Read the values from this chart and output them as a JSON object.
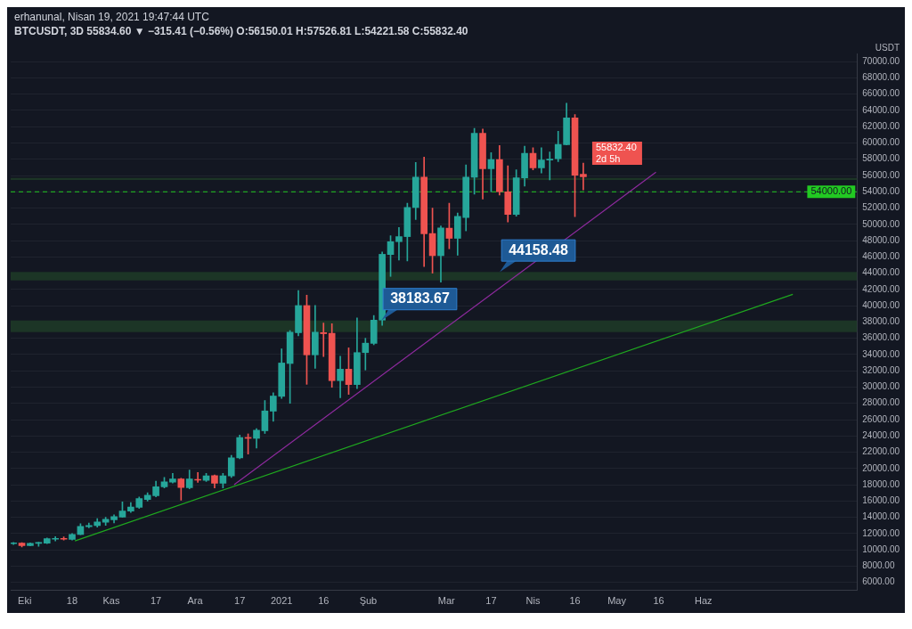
{
  "chart_data": {
    "type": "candlestick",
    "title": "erhanunal, Nisan 19, 2021 19:47:44 UTC",
    "subtitle": "BTCUSDT, 3D 55834.60 ▼ −315.41 (−0.56%) O:56150.01 H:57526.81 L:54221.58 C:55832.40",
    "ylabel": "USDT",
    "x": [
      "2020-09-27",
      "2020-09-30",
      "2020-10-03",
      "2020-10-06",
      "2020-10-09",
      "2020-10-12",
      "2020-10-15",
      "2020-10-18",
      "2020-10-21",
      "2020-10-24",
      "2020-10-27",
      "2020-10-30",
      "2020-11-02",
      "2020-11-05",
      "2020-11-08",
      "2020-11-11",
      "2020-11-14",
      "2020-11-17",
      "2020-11-20",
      "2020-11-23",
      "2020-11-26",
      "2020-11-29",
      "2020-12-02",
      "2020-12-05",
      "2020-12-08",
      "2020-12-11",
      "2020-12-14",
      "2020-12-17",
      "2020-12-20",
      "2020-12-23",
      "2020-12-26",
      "2020-12-29",
      "2021-01-01",
      "2021-01-04",
      "2021-01-07",
      "2021-01-10",
      "2021-01-13",
      "2021-01-16",
      "2021-01-19",
      "2021-01-22",
      "2021-01-25",
      "2021-01-28",
      "2021-01-31",
      "2021-02-03",
      "2021-02-06",
      "2021-02-09",
      "2021-02-12",
      "2021-02-15",
      "2021-02-18",
      "2021-02-21",
      "2021-02-24",
      "2021-02-27",
      "2021-03-02",
      "2021-03-05",
      "2021-03-08",
      "2021-03-11",
      "2021-03-14",
      "2021-03-17",
      "2021-03-20",
      "2021-03-23",
      "2021-03-26",
      "2021-03-29",
      "2021-04-01",
      "2021-04-04",
      "2021-04-07",
      "2021-04-10",
      "2021-04-13",
      "2021-04-16",
      "2021-04-19"
    ],
    "ohlc": [
      [
        10750,
        10900,
        10650,
        10800
      ],
      [
        10820,
        10890,
        10340,
        10510
      ],
      [
        10510,
        10850,
        10500,
        10790
      ],
      [
        10790,
        10950,
        10440,
        10890
      ],
      [
        10830,
        11450,
        10750,
        11370
      ],
      [
        11300,
        11620,
        11100,
        11380
      ],
      [
        11400,
        11600,
        11200,
        11300
      ],
      [
        11270,
        12000,
        11200,
        11890
      ],
      [
        11890,
        13200,
        11850,
        12890
      ],
      [
        12850,
        13300,
        12700,
        12990
      ],
      [
        12990,
        13850,
        12800,
        13440
      ],
      [
        13400,
        14000,
        13000,
        13750
      ],
      [
        13680,
        14300,
        13300,
        14090
      ],
      [
        14020,
        15900,
        14000,
        14780
      ],
      [
        14750,
        15800,
        14600,
        15260
      ],
      [
        15230,
        16500,
        15100,
        16300
      ],
      [
        16190,
        17000,
        16000,
        16700
      ],
      [
        16640,
        18450,
        16500,
        17740
      ],
      [
        17740,
        18900,
        17600,
        18360
      ],
      [
        18330,
        19400,
        18200,
        18700
      ],
      [
        18700,
        18800,
        16100,
        17670
      ],
      [
        17640,
        19800,
        17500,
        18700
      ],
      [
        18630,
        19500,
        18300,
        18550
      ],
      [
        18530,
        19400,
        18400,
        19080
      ],
      [
        19120,
        19200,
        17600,
        18190
      ],
      [
        18190,
        19400,
        17600,
        19080
      ],
      [
        19080,
        21600,
        18900,
        21320
      ],
      [
        21290,
        24100,
        21200,
        23800
      ],
      [
        23800,
        24250,
        21770,
        23700
      ],
      [
        23700,
        24900,
        22500,
        24700
      ],
      [
        24630,
        28350,
        24300,
        27070
      ],
      [
        27040,
        29300,
        25800,
        28900
      ],
      [
        28860,
        34700,
        28600,
        32960
      ],
      [
        32900,
        36950,
        28000,
        36750
      ],
      [
        36680,
        41880,
        36300,
        40020
      ],
      [
        40020,
        41300,
        30340,
        33960
      ],
      [
        33960,
        40020,
        32300,
        36750
      ],
      [
        36700,
        37870,
        33750,
        36560
      ],
      [
        36610,
        37790,
        29970,
        30790
      ],
      [
        30790,
        33800,
        28700,
        32200
      ],
      [
        32200,
        34820,
        29100,
        30310
      ],
      [
        30310,
        38500,
        29800,
        34240
      ],
      [
        34240,
        36000,
        32100,
        35400
      ],
      [
        35370,
        38800,
        35200,
        38230
      ],
      [
        38230,
        46600,
        37600,
        46320
      ],
      [
        46290,
        48600,
        43600,
        47870
      ],
      [
        47870,
        49600,
        45600,
        48490
      ],
      [
        48490,
        52600,
        45500,
        52070
      ],
      [
        52070,
        57600,
        50600,
        55790
      ],
      [
        55790,
        58260,
        44800,
        48840
      ],
      [
        48870,
        52000,
        44000,
        46150
      ],
      [
        46150,
        49800,
        42900,
        49560
      ],
      [
        49530,
        52600,
        47000,
        48280
      ],
      [
        48280,
        51400,
        46200,
        50970
      ],
      [
        50830,
        57300,
        49200,
        55790
      ],
      [
        55790,
        61800,
        53700,
        61200
      ],
      [
        61200,
        61700,
        53100,
        56820
      ],
      [
        56820,
        58800,
        54000,
        57960
      ],
      [
        57960,
        59700,
        53600,
        54000
      ],
      [
        54000,
        57200,
        50300,
        51210
      ],
      [
        51210,
        56700,
        51000,
        55720
      ],
      [
        55720,
        59600,
        54700,
        58720
      ],
      [
        58720,
        59400,
        56700,
        56930
      ],
      [
        56930,
        59400,
        56300,
        57920
      ],
      [
        57900,
        58900,
        55450,
        58000
      ],
      [
        58060,
        61450,
        57700,
        59820
      ],
      [
        59780,
        64900,
        59750,
        63090
      ],
      [
        63090,
        63500,
        50950,
        56030
      ],
      [
        56150.01,
        57526.81,
        54221.58,
        55832.4
      ]
    ],
    "colors": [
      "#26a69a",
      "#ef5350",
      "#26a69a",
      "#26a69a",
      "#26a69a",
      "#26a69a",
      "#ef5350",
      "#26a69a",
      "#26a69a",
      "#26a69a",
      "#26a69a",
      "#26a69a",
      "#26a69a",
      "#26a69a",
      "#26a69a",
      "#26a69a",
      "#26a69a",
      "#26a69a",
      "#26a69a",
      "#26a69a",
      "#ef5350",
      "#26a69a",
      "#ef5350",
      "#26a69a",
      "#ef5350",
      "#26a69a",
      "#26a69a",
      "#26a69a",
      "#ef5350",
      "#26a69a",
      "#26a69a",
      "#26a69a",
      "#26a69a",
      "#26a69a",
      "#26a69a",
      "#ef5350",
      "#26a69a",
      "#ef5350",
      "#ef5350",
      "#26a69a",
      "#ef5350",
      "#26a69a",
      "#26a69a",
      "#26a69a",
      "#26a69a",
      "#26a69a",
      "#26a69a",
      "#26a69a",
      "#26a69a",
      "#ef5350",
      "#ef5350",
      "#26a69a",
      "#ef5350",
      "#26a69a",
      "#26a69a",
      "#26a69a",
      "#ef5350",
      "#26a69a",
      "#ef5350",
      "#ef5350",
      "#26a69a",
      "#26a69a",
      "#ef5350",
      "#26a69a",
      "#26a69a",
      "#26a69a",
      "#26a69a",
      "#ef5350",
      "#ef5350"
    ],
    "series": [
      {
        "type": "line",
        "color": "#1fa81f",
        "x": [
          "2020-10-19",
          "2021-07-03"
        ],
        "values": [
          11100,
          41400
        ]
      },
      {
        "type": "line",
        "color": "#8e2a9e",
        "x": [
          "2020-12-15",
          "2021-05-15"
        ],
        "values": [
          18000,
          56400
        ]
      }
    ],
    "xlim": [
      "2020-09-26",
      "2021-07-26"
    ],
    "xticks": [
      {
        "value": "2020-10-01",
        "label": "Eki"
      },
      {
        "value": "2020-10-18",
        "label": "18"
      },
      {
        "value": "2020-11-01",
        "label": "Kas"
      },
      {
        "value": "2020-11-17",
        "label": "17"
      },
      {
        "value": "2020-12-01",
        "label": "Ara"
      },
      {
        "value": "2020-12-17",
        "label": "17"
      },
      {
        "value": "2021-01-01",
        "label": "2021"
      },
      {
        "value": "2021-01-16",
        "label": "16"
      },
      {
        "value": "2021-02-01",
        "label": "Şub"
      },
      {
        "value": "2021-03-01",
        "label": "Mar"
      },
      {
        "value": "2021-03-17",
        "label": "17"
      },
      {
        "value": "2021-04-01",
        "label": "Nis"
      },
      {
        "value": "2021-04-16",
        "label": "16"
      },
      {
        "value": "2021-05-01",
        "label": "May"
      },
      {
        "value": "2021-05-16",
        "label": "16"
      },
      {
        "value": "2021-06-01",
        "label": "Haz"
      }
    ],
    "ylim": [
      5000,
      71000
    ],
    "yticks": [
      {
        "value": 6000,
        "label": "6000.00"
      },
      {
        "value": 8000,
        "label": "8000.00"
      },
      {
        "value": 10000,
        "label": "10000.00"
      },
      {
        "value": 12000,
        "label": "12000.00"
      },
      {
        "value": 14000,
        "label": "14000.00"
      },
      {
        "value": 16000,
        "label": "16000.00"
      },
      {
        "value": 18000,
        "label": "18000.00"
      },
      {
        "value": 20000,
        "label": "20000.00"
      },
      {
        "value": 22000,
        "label": "22000.00"
      },
      {
        "value": 24000,
        "label": "24000.00"
      },
      {
        "value": 26000,
        "label": "26000.00"
      },
      {
        "value": 28000,
        "label": "28000.00"
      },
      {
        "value": 30000,
        "label": "30000.00"
      },
      {
        "value": 32000,
        "label": "32000.00"
      },
      {
        "value": 34000,
        "label": "34000.00"
      },
      {
        "value": 36000,
        "label": "36000.00"
      },
      {
        "value": 38000,
        "label": "38000.00"
      },
      {
        "value": 40000,
        "label": "40000.00"
      },
      {
        "value": 42000,
        "label": "42000.00"
      },
      {
        "value": 44000,
        "label": "44000.00"
      },
      {
        "value": 46000,
        "label": "46000.00"
      },
      {
        "value": 48000,
        "label": "48000.00"
      },
      {
        "value": 50000,
        "label": "50000.00"
      },
      {
        "value": 52000,
        "label": "52000.00"
      },
      {
        "value": 54000,
        "label": "54000.00"
      },
      {
        "value": 56000,
        "label": "56000.00"
      },
      {
        "value": 58000,
        "label": "58000.00"
      },
      {
        "value": 60000,
        "label": "60000.00"
      },
      {
        "value": 62000,
        "label": "62000.00"
      },
      {
        "value": 64000,
        "label": "64000.00"
      },
      {
        "value": 66000,
        "label": "66000.00"
      },
      {
        "value": 68000,
        "label": "68000.00"
      },
      {
        "value": 70000,
        "label": "70000.00"
      }
    ],
    "grid": "y",
    "ref_lines": [
      {
        "axis": "y",
        "value": 54000,
        "label": "54000.00",
        "color": "#22c922",
        "line_style": "dashed"
      }
    ],
    "bands": [
      {
        "axis": "y",
        "from": 55450,
        "to": 55700,
        "color": "#1c3526"
      },
      {
        "axis": "y",
        "from": 43100,
        "to": 44158.48,
        "label": "44158.48",
        "color": "#1c3526"
      },
      {
        "axis": "y",
        "from": 36750,
        "to": 38183.67,
        "label": "38183.67",
        "color": "#1c3526"
      }
    ],
    "annotations": [
      {
        "text": "55832.40",
        "x": "2021-04-19",
        "y": 55832.4
      },
      {
        "text": "2d 5h",
        "x": "2021-04-19",
        "y": 55832.4
      }
    ]
  }
}
